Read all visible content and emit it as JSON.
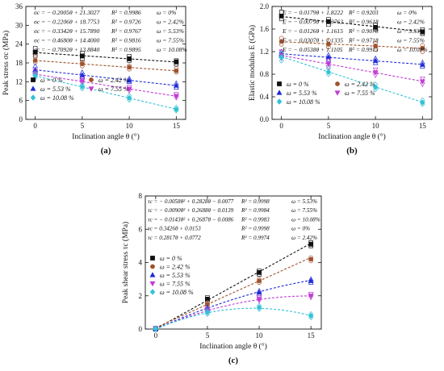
{
  "chart_data": [
    {
      "panel": "(a)",
      "type": "scatter",
      "title": "",
      "xlabel": "Inclination angle θ (°)",
      "ylabel": "Peak stress σc (MPa)",
      "xlim": [
        -1,
        16
      ],
      "ylim": [
        0,
        36
      ],
      "xticks": [
        0,
        5,
        10,
        15
      ],
      "yticks": [
        0,
        6,
        12,
        18,
        24,
        30,
        36
      ],
      "x": [
        0,
        5,
        10,
        15
      ],
      "legend_position": "bottom-left",
      "series": [
        {
          "name": "ω = 0 %",
          "color": "#111111",
          "marker": "square",
          "fit": "linear",
          "slope": -0.2005,
          "intercept": 21.3027,
          "values": [
            21.4,
            20.2,
            19.3,
            18.3
          ],
          "extra_values": [
            [
              22.6,
              20.4
            ],
            [
              21.1,
              19.3
            ],
            [
              20.1,
              18.8
            ],
            [
              18.7,
              17.6
            ]
          ]
        },
        {
          "name": "ω = 2.42 %",
          "color": "#a0522d",
          "marker": "circle",
          "fit": "linear",
          "slope": -0.2206,
          "intercept": 18.7753,
          "values": [
            18.8,
            17.7,
            16.6,
            15.5
          ],
          "extra_values": [
            [
              19.8,
              18.2
            ],
            [
              18.3,
              17.0
            ],
            [
              17.1,
              16.0
            ],
            [
              16.2,
              15.0
            ]
          ]
        },
        {
          "name": "ω = 5.53 %",
          "color": "#1f2bd6",
          "marker": "triangle",
          "fit": "linear",
          "slope": -0.3342,
          "intercept": 15.789,
          "values": [
            15.8,
            14.1,
            12.4,
            10.8
          ],
          "extra_values": [
            [
              17.0,
              15.0
            ],
            [
              15.0,
              13.5
            ],
            [
              13.0,
              12.0
            ],
            [
              11.5,
              10.2
            ]
          ]
        },
        {
          "name": "ω = 7.55 %",
          "color": "#c23bd6",
          "marker": "triangle-down",
          "fit": "linear",
          "slope": -0.468,
          "intercept": 14.4,
          "values": [
            14.4,
            12.1,
            9.7,
            7.4
          ],
          "extra_values": [
            [
              15.4,
              13.6
            ],
            [
              12.8,
              11.5
            ],
            [
              10.3,
              9.1
            ],
            [
              8.0,
              6.9
            ]
          ]
        },
        {
          "name": "ω = 10.08 %",
          "color": "#33c2d6",
          "marker": "diamond",
          "fit": "linear",
          "slope": -0.7092,
          "intercept": 13.884,
          "values": [
            13.9,
            10.4,
            6.8,
            3.2
          ],
          "extra_values": [
            [
              14.6,
              13.2
            ],
            [
              11.0,
              9.8
            ],
            [
              7.5,
              6.2
            ],
            [
              3.8,
              2.8
            ]
          ]
        }
      ],
      "equations": [
        {
          "label": "σc = − 0.2005θ + 21.3027",
          "r2": "R² = 0.9986",
          "omega": "ω = 0%"
        },
        {
          "label": "σc = − 0.2206θ + 18.7753",
          "r2": "R² = 0.9726",
          "omega": "ω = 2.42%"
        },
        {
          "label": "σc = − 0.3342θ + 15.7890",
          "r2": "R² = 0.9767",
          "omega": "ω = 5.53%"
        },
        {
          "label": "σc = − 0.4680θ + 14.4000",
          "r2": "R² = 0.9816",
          "omega": "ω = 7.55%"
        },
        {
          "label": "σc = − 0.7092θ + 13.8840",
          "r2": "R² = 0.9895",
          "omega": "ω = 10.08%"
        }
      ]
    },
    {
      "panel": "(b)",
      "type": "scatter",
      "title": "",
      "xlabel": "Inclination angle θ (°)",
      "ylabel": "Elastic modulus E (GPa)",
      "xlim": [
        -1,
        16
      ],
      "ylim": [
        0,
        2.0
      ],
      "xticks": [
        0,
        5,
        10,
        15
      ],
      "yticks": [
        0,
        0.4,
        0.8,
        1.2,
        1.6,
        2.0
      ],
      "x": [
        0,
        5,
        10,
        15
      ],
      "legend_position": "bottom-left",
      "series": [
        {
          "name": "ω = 0 %",
          "color": "#111111",
          "marker": "square",
          "fit": "linear",
          "slope": -0.0179,
          "intercept": 1.8222,
          "values": [
            1.83,
            1.73,
            1.63,
            1.55
          ],
          "extra_values": [
            [
              1.9,
              1.78
            ],
            [
              1.77,
              1.68
            ],
            [
              1.67,
              1.6
            ],
            [
              1.59,
              1.52
            ]
          ]
        },
        {
          "name": "ω = 2.42 %",
          "color": "#a0522d",
          "marker": "circle",
          "fit": "linear",
          "slope": -0.0079,
          "intercept": 1.3763,
          "values": [
            1.38,
            1.33,
            1.3,
            1.26
          ],
          "extra_values": [
            [
              1.44,
              1.33
            ],
            [
              1.4,
              1.28
            ],
            [
              1.35,
              1.24
            ],
            [
              1.31,
              1.2
            ]
          ]
        },
        {
          "name": "ω = 5.53 %",
          "color": "#1f2bd6",
          "marker": "triangle",
          "fit": "linear",
          "slope": -0.0126,
          "intercept": 1.1615,
          "values": [
            1.16,
            1.1,
            1.04,
            0.97
          ],
          "extra_values": [
            [
              1.2,
              1.12
            ],
            [
              1.14,
              1.06
            ],
            [
              1.08,
              1.0
            ],
            [
              1.01,
              0.94
            ]
          ]
        },
        {
          "name": "ω = 7.55 %",
          "color": "#c23bd6",
          "marker": "triangle-down",
          "fit": "linear",
          "slope": -0.0307,
          "intercept": 1.1335,
          "values": [
            1.13,
            0.98,
            0.83,
            0.67
          ],
          "extra_values": [
            [
              1.2,
              1.08
            ],
            [
              1.04,
              0.92
            ],
            [
              0.88,
              0.78
            ],
            [
              0.72,
              0.62
            ]
          ]
        },
        {
          "name": "ω = 10.08 %",
          "color": "#33c2d6",
          "marker": "diamond",
          "fit": "linear",
          "slope": -0.0538,
          "intercept": 1.1105,
          "values": [
            1.1,
            0.84,
            0.57,
            0.3
          ],
          "extra_values": [
            [
              1.16,
              1.04
            ],
            [
              0.9,
              0.8
            ],
            [
              0.62,
              0.53
            ],
            [
              0.34,
              0.27
            ]
          ]
        }
      ],
      "equations": [
        {
          "label": "E = − 0.0179θ + 1.8222",
          "r2": "R² = 0.9203",
          "omega": "ω = 0%"
        },
        {
          "label": "E = − 0.0079θ + 1.3763",
          "r2": "R² = 0.9618",
          "omega": "ω = 2.42%"
        },
        {
          "label": "E = − 0.0126θ + 1.1615",
          "r2": "R² = 0.9078",
          "omega": "ω = 5.53%"
        },
        {
          "label": "E = − 0.0307θ + 1.1335",
          "r2": "R² = 0.9718",
          "omega": "ω = 7.55%"
        },
        {
          "label": "E = − 0.0538θ + 1.1105",
          "r2": "R² = 0.9915",
          "omega": "ω = 10.08%"
        }
      ]
    },
    {
      "panel": "(c)",
      "type": "scatter",
      "title": "",
      "xlabel": "Inclination angle θ (°)",
      "ylabel": "Peak shear stress τc (MPa)",
      "xlim": [
        -1,
        16
      ],
      "ylim": [
        0,
        8
      ],
      "xticks": [
        0,
        5,
        10,
        15
      ],
      "yticks": [
        0,
        2,
        4,
        6,
        8
      ],
      "x": [
        0,
        5,
        10,
        15
      ],
      "legend_position": "top-left",
      "series": [
        {
          "name": "ω = 0 %",
          "color": "#111111",
          "marker": "square",
          "fit": "linear",
          "slope": 0.3426,
          "intercept": 0.0153,
          "values": [
            0.0,
            1.8,
            3.4,
            5.1
          ],
          "extra_values": [
            [
              0.05,
              0.0
            ],
            [
              1.9,
              1.7
            ],
            [
              3.5,
              3.3
            ],
            [
              5.2,
              5.0
            ]
          ]
        },
        {
          "name": "ω = 2.42 %",
          "color": "#a0522d",
          "marker": "circle",
          "fit": "linear",
          "slope": 0.2817,
          "intercept": 0.0772,
          "values": [
            0.0,
            1.5,
            2.9,
            4.2
          ],
          "extra_values": [
            [
              0.05,
              0.0
            ],
            [
              1.6,
              1.4
            ],
            [
              3.0,
              2.8
            ],
            [
              4.3,
              4.1
            ]
          ]
        },
        {
          "name": "ω = 5.53 %",
          "color": "#1f2bd6",
          "marker": "triangle",
          "fit": "quadratic",
          "coef": [
            -0.0058,
            0.2828,
            -0.0077
          ],
          "values": [
            0.0,
            1.2,
            2.2,
            2.9
          ],
          "extra_values": [
            [
              0.05,
              0.0
            ],
            [
              1.3,
              1.1
            ],
            [
              2.3,
              2.1
            ],
            [
              3.0,
              2.8
            ]
          ]
        },
        {
          "name": "ω = 7.55 %",
          "color": "#c23bd6",
          "marker": "triangle-down",
          "fit": "quadratic",
          "coef": [
            -0.009,
            0.2688,
            -0.0139
          ],
          "values": [
            0.0,
            1.1,
            1.8,
            2.0
          ],
          "extra_values": [
            [
              0.05,
              0.0
            ],
            [
              1.2,
              1.0
            ],
            [
              1.9,
              1.7
            ],
            [
              2.1,
              1.9
            ]
          ]
        },
        {
          "name": "ω = 10.08 %",
          "color": "#33c2d6",
          "marker": "diamond",
          "fit": "quadratic",
          "coef": [
            -0.0143,
            0.2687,
            -0.0086
          ],
          "values": [
            0.0,
            1.0,
            1.3,
            0.8
          ],
          "extra_values": [
            [
              0.05,
              0.0
            ],
            [
              1.1,
              0.9
            ],
            [
              1.4,
              1.2
            ],
            [
              0.9,
              0.7
            ]
          ]
        }
      ],
      "equations": [
        {
          "label": "τc = − 0.0058θ² + 0.2828θ − 0.0077",
          "r2": "R² = 0.9998",
          "omega": "ω = 5.53%"
        },
        {
          "label": "τc = − 0.0090θ² + 0.2688θ − 0.0139",
          "r2": "R² = 0.9984",
          "omega": "ω = 7.55%"
        },
        {
          "label": "τc = − 0.0143θ² + 0.2687θ − 0.0086",
          "r2": "R² = 0.9983",
          "omega": "ω = 10.08%"
        },
        {
          "label": "τc = 0.3426θ + 0.0153",
          "r2": "R² = 0.9998",
          "omega": "ω = 0%"
        },
        {
          "label": "τc = 0.2817θ + 0.0772",
          "r2": "R² = 0.9974",
          "omega": "ω = 2.42%"
        }
      ]
    }
  ]
}
